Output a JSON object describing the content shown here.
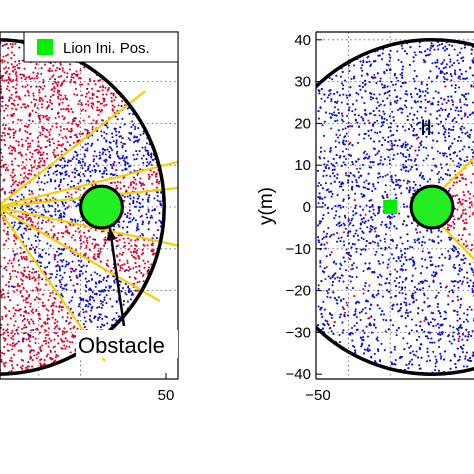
{
  "chart_data": [
    {
      "type": "scatter",
      "panel": "left",
      "title": "",
      "xlabel": "",
      "ylabel": "",
      "xlim": [
        -50,
        50
      ],
      "ylim": [
        -40,
        40
      ],
      "xticks": [
        50
      ],
      "xtick_labels": [
        "50"
      ],
      "yticks": [],
      "legend": {
        "placement": "top-right",
        "entries": [
          {
            "label": "Lion Ini. Pos.",
            "color": "#00ee00",
            "marker": "square"
          }
        ]
      },
      "annotations": [
        {
          "text": "Obstacle",
          "arrow_to": [
            27,
            -5
          ]
        }
      ],
      "arena": {
        "center": [
          0,
          0
        ],
        "radius": 40
      },
      "obstacle": {
        "center": [
          25,
          0
        ],
        "radius": 5,
        "color": "#22ee22"
      },
      "series": [
        {
          "name": "",
          "color": "#e0002a"
        },
        {
          "name": "",
          "color": "#1010c8"
        }
      ]
    },
    {
      "type": "scatter",
      "panel": "right",
      "title": "",
      "xlabel": "",
      "ylabel": "y(m)",
      "xlim": [
        -50,
        50
      ],
      "ylim": [
        -40,
        40
      ],
      "xticks": [
        -50
      ],
      "xtick_labels": [
        "−50"
      ],
      "yticks": [
        40,
        30,
        20,
        10,
        0,
        -10,
        -20,
        -30,
        -40
      ],
      "ytick_labels": [
        "40",
        "30",
        "20",
        "10",
        "0",
        "−10",
        "−20",
        "−30",
        "−40"
      ],
      "annotations": [
        {
          "text": "II",
          "color": "#dd0000"
        }
      ],
      "arena": {
        "center": [
          0,
          0
        ],
        "radius": 40
      },
      "obstacle": {
        "center": [
          0,
          0
        ],
        "radius": 5,
        "color": "#22ee22"
      },
      "lion_initial_position": [
        -10,
        0
      ],
      "series": [
        {
          "name": "",
          "color": "#e0002a"
        },
        {
          "name": "",
          "color": "#1010c8"
        }
      ]
    }
  ],
  "colors": {
    "red": "#e0002a",
    "blue": "#1010c8",
    "green": "#00ee00",
    "boundary": "#f5d000"
  }
}
